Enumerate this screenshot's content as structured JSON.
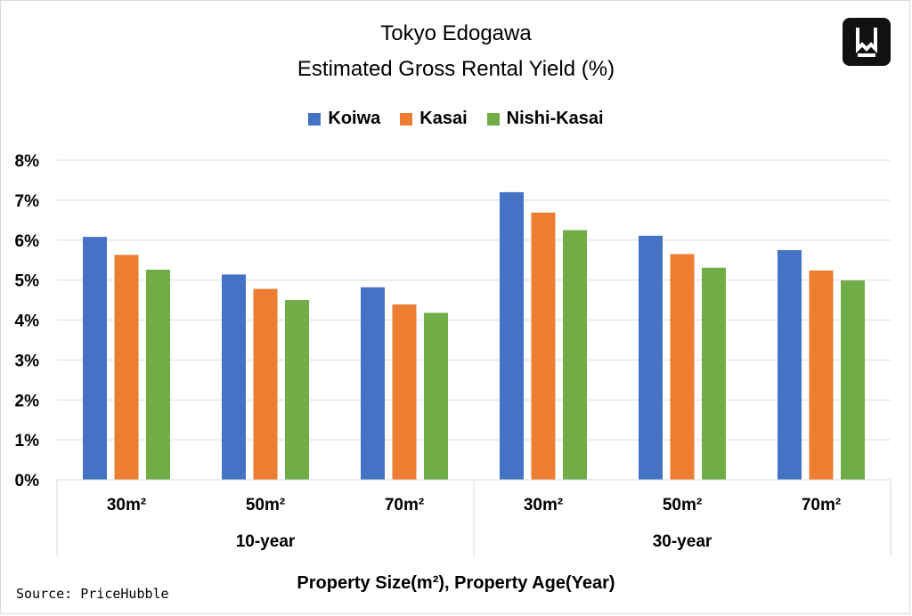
{
  "chart_data": {
    "type": "bar",
    "title": [
      "Tokyo Edogawa",
      "Estimated Gross Rental Yield (%)"
    ],
    "xlabel": "Property Size(m²), Property Age(Year)",
    "ylabel": "",
    "ylim": [
      0,
      8
    ],
    "y_ticks": [
      "0%",
      "1%",
      "2%",
      "3%",
      "4%",
      "5%",
      "6%",
      "7%",
      "8%"
    ],
    "grid": true,
    "legend_position": "top",
    "groups": [
      "10-year",
      "30-year"
    ],
    "categories": [
      "30m²",
      "50m²",
      "70m²",
      "30m²",
      "50m²",
      "70m²"
    ],
    "series": [
      {
        "name": "Koiwa",
        "color": "#4472c4",
        "values": [
          6.08,
          5.14,
          4.82,
          7.2,
          6.11,
          5.75
        ]
      },
      {
        "name": "Kasai",
        "color": "#ed7d31",
        "values": [
          5.63,
          4.78,
          4.39,
          6.69,
          5.65,
          5.24
        ]
      },
      {
        "name": "Nishi-Kasai",
        "color": "#70ad47",
        "values": [
          5.26,
          4.5,
          4.18,
          6.25,
          5.31,
          4.99
        ]
      }
    ]
  },
  "source": "Source: PriceHubble",
  "logo": {
    "icon": "w-logo-icon"
  }
}
